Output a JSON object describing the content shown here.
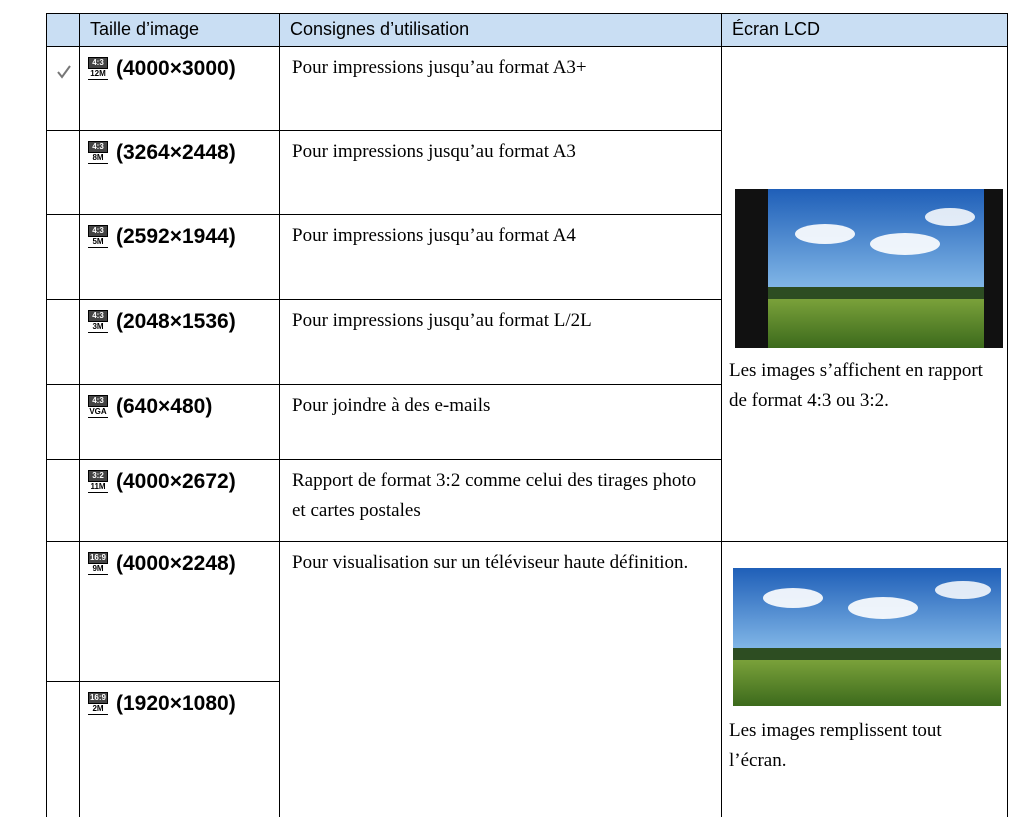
{
  "header": [
    "Taille d’image",
    "Consignes d’utilisation",
    "Écran LCD"
  ],
  "rows": [
    {
      "icon_ratio": "4:3",
      "icon_size": "12M",
      "size": "(4000×3000)",
      "use": "Pour impressions jusqu’au format A3+"
    },
    {
      "icon_ratio": "4:3",
      "icon_size": "8M",
      "size": "(3264×2448)",
      "use": "Pour impressions jusqu’au format A3"
    },
    {
      "icon_ratio": "4:3",
      "icon_size": "5M",
      "size": "(2592×1944)",
      "use": "Pour impressions jusqu’au format A4"
    },
    {
      "icon_ratio": "4:3",
      "icon_size": "3M",
      "size": "(2048×1536)",
      "use": "Pour impressions jusqu’au format L/2L"
    },
    {
      "icon_ratio": "4:3",
      "icon_size": "VGA",
      "size": "(640×480)",
      "use": "Pour joindre à des e-mails"
    },
    {
      "icon_ratio": "3:2",
      "icon_size": "11M",
      "size": "(4000×2672)",
      "use": "Rapport de format 3:2 comme celui des tirages photo et cartes postales"
    },
    {
      "icon_ratio": "16:9",
      "icon_size": "9M",
      "size": "(4000×2248)",
      "use": "Pour visualisation sur un téléviseur haute définition."
    },
    {
      "icon_ratio": "16:9",
      "icon_size": "2M",
      "size": "(1920×1080)"
    }
  ],
  "lcd": [
    {
      "caption": "Les images s’affichent en rapport de format 4:3 ou 3:2."
    },
    {
      "caption": "Les images remplissent tout l’écran."
    }
  ]
}
